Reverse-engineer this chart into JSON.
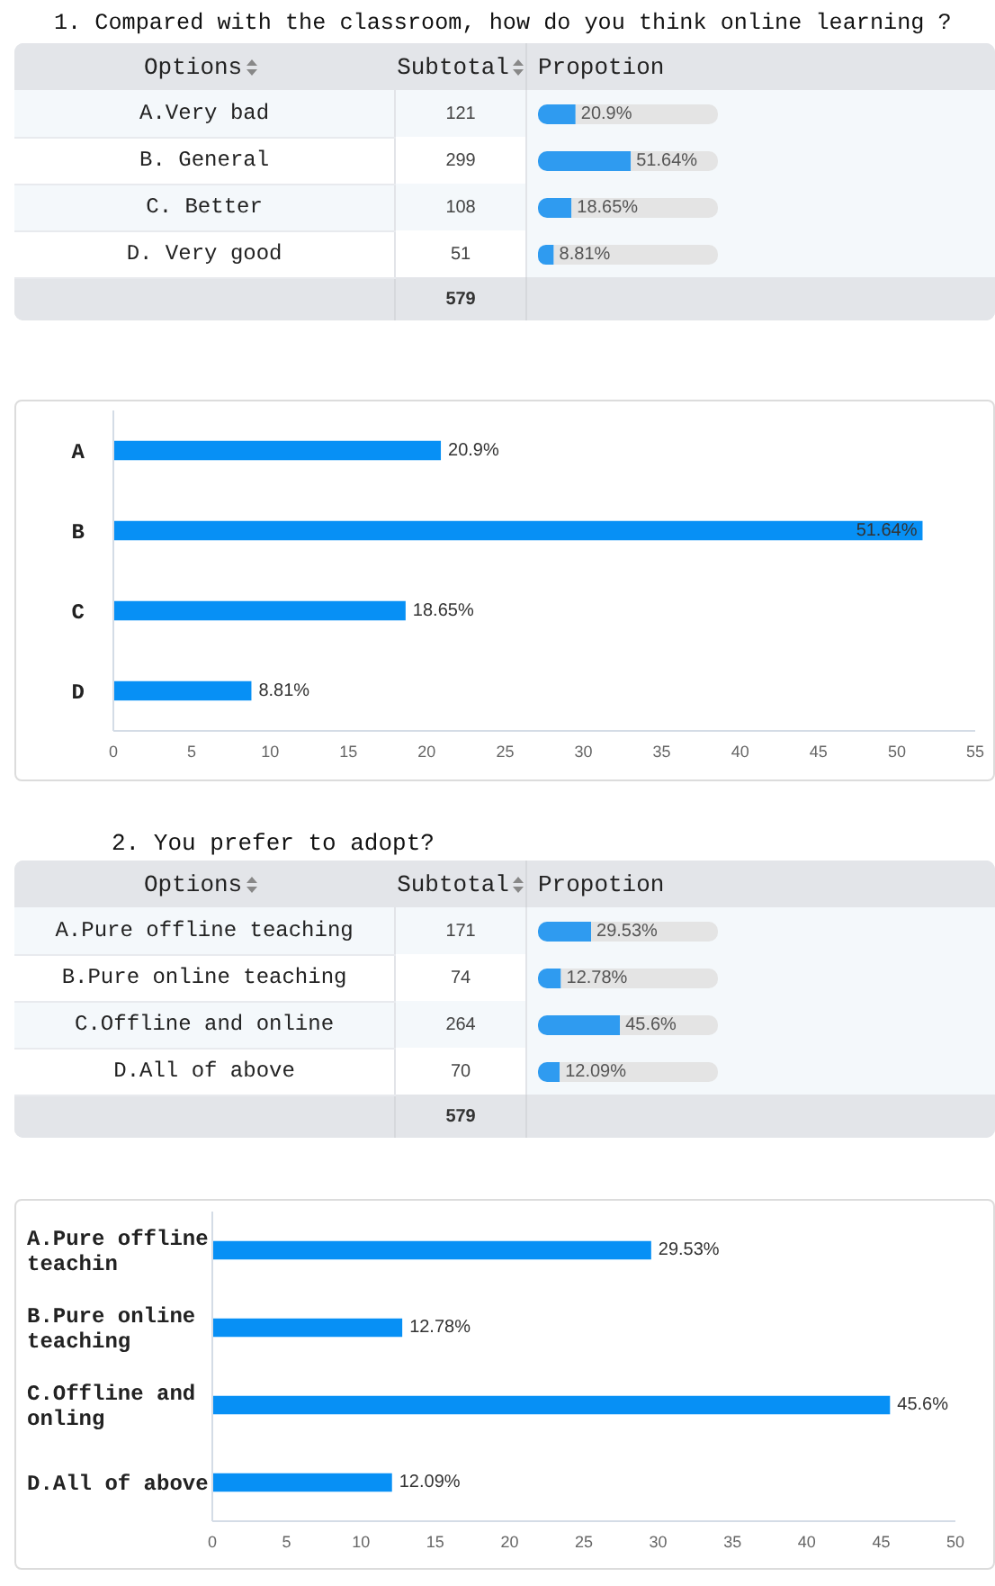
{
  "chart_data": [
    {
      "type": "bar",
      "orientation": "horizontal",
      "stacked": true,
      "title": "1. Compared with the classroom, how do you think online learning ?",
      "ylabel": "Options",
      "categories": [
        "A.Very bad",
        "B. General",
        "C. Better",
        "D. Very good"
      ],
      "series": [
        {
          "name": "Propotion",
          "color": "#2f9bf0",
          "values": [
            20.9,
            51.64,
            18.65,
            8.81
          ],
          "value_labels": [
            "20.9%",
            "51.64%",
            "18.65%",
            "8.81%"
          ]
        },
        {
          "color": "#e4e4e4",
          "values": [
            79.1,
            48.36,
            81.35,
            91.19
          ]
        }
      ],
      "annotations": [
        "Subtotal",
        "121",
        "299",
        "108",
        "51",
        "579"
      ],
      "xlim": [
        0,
        100
      ],
      "tick_labels": "y"
    },
    {
      "type": "bar",
      "orientation": "horizontal",
      "categories": [
        "A",
        "B",
        "C",
        "D"
      ],
      "color": "#0790f5",
      "values": [
        20.9,
        51.64,
        18.65,
        8.81
      ],
      "value_labels": [
        "20.9%",
        "51.64%",
        "18.65%",
        "8.81%"
      ],
      "xlim": [
        0,
        55
      ],
      "xticks": [
        0,
        5,
        10,
        15,
        20,
        25,
        30,
        35,
        40,
        45,
        50,
        55
      ]
    },
    {
      "type": "bar",
      "orientation": "horizontal",
      "stacked": true,
      "title": "2. You prefer to adopt?",
      "ylabel": "Options",
      "categories": [
        "A.Pure offline teaching",
        "B.Pure online teaching",
        "C.Offline and online",
        "D.All of above"
      ],
      "series": [
        {
          "name": "Propotion",
          "color": "#2f9bf0",
          "values": [
            29.53,
            12.78,
            45.6,
            12.09
          ],
          "value_labels": [
            "29.53%",
            "12.78%",
            "45.6%",
            "12.09%"
          ]
        },
        {
          "color": "#e4e4e4",
          "values": [
            70.47,
            87.22,
            54.4,
            87.91
          ]
        }
      ],
      "annotations": [
        "Subtotal",
        "171",
        "74",
        "264",
        "70",
        "579"
      ],
      "xlim": [
        0,
        100
      ],
      "tick_labels": "y"
    },
    {
      "type": "bar",
      "orientation": "horizontal",
      "categories": [
        "A.Pure offline teachin",
        "B.Pure online teaching",
        "C.Offline and onling",
        "D.All of above"
      ],
      "color": "#0790f5",
      "values": [
        29.53,
        12.78,
        45.6,
        12.09
      ],
      "value_labels": [
        "29.53%",
        "12.78%",
        "45.6%",
        "12.09%"
      ],
      "xlim": [
        0,
        50
      ],
      "xticks": [
        0,
        5,
        10,
        15,
        20,
        25,
        30,
        35,
        40,
        45,
        50
      ]
    }
  ]
}
